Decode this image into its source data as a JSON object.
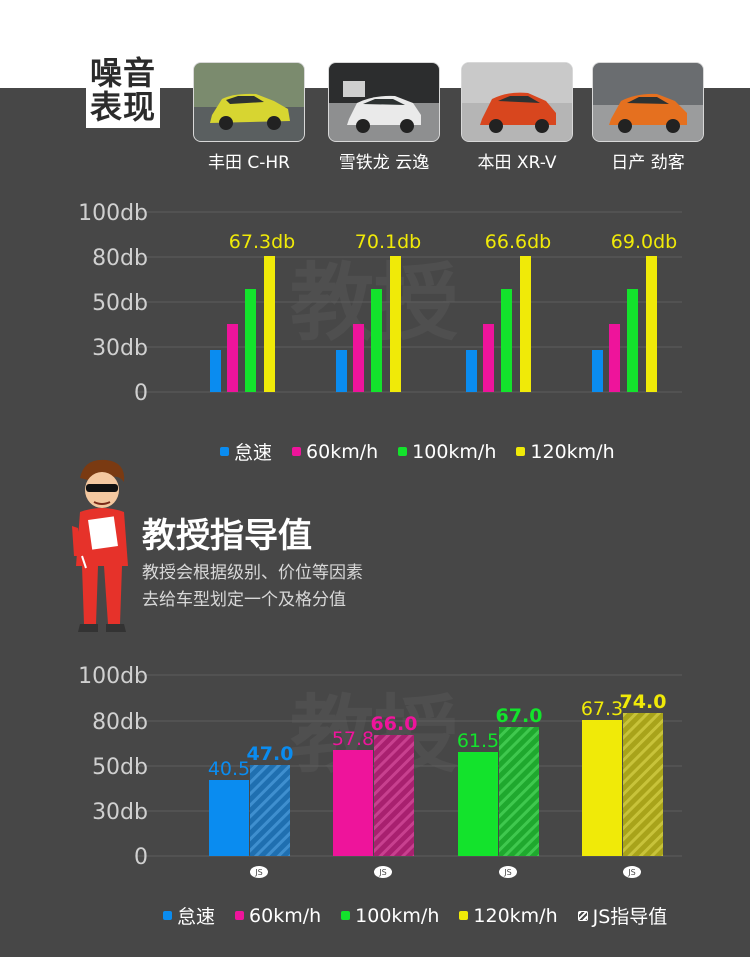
{
  "header": {
    "noise_title_line1": "噪音",
    "noise_title_line2": "表现"
  },
  "cars": [
    {
      "name": "丰田 C-HR",
      "color": "#d7d531"
    },
    {
      "name": "雪铁龙 云逸",
      "color": "#eaeaea"
    },
    {
      "name": "本田 XR-V",
      "color": "#d8461e"
    },
    {
      "name": "日产 劲客",
      "color": "#e5701f"
    }
  ],
  "watermark": "教授",
  "colors": {
    "idle": "#0a8cf0",
    "kmh60": "#ee149b",
    "kmh100": "#13e32c",
    "kmh120": "#f0ea08",
    "background": "#474747"
  },
  "legend_top": [
    {
      "label": "怠速",
      "color": "#0a8cf0"
    },
    {
      "label": "60km/h",
      "color": "#ee149b"
    },
    {
      "label": "100km/h",
      "color": "#13e32c"
    },
    {
      "label": "120km/h",
      "color": "#f0ea08"
    }
  ],
  "professor": {
    "title": "教授指导值",
    "desc_line1": "教授会根据级别、价位等因素",
    "desc_line2": "去给车型划定一个及格分值"
  },
  "legend_bottom": [
    {
      "label": "怠速",
      "color": "#0a8cf0",
      "hatch": false
    },
    {
      "label": "60km/h",
      "color": "#ee149b",
      "hatch": false
    },
    {
      "label": "100km/h",
      "color": "#13e32c",
      "hatch": false
    },
    {
      "label": "120km/h",
      "color": "#f0ea08",
      "hatch": false
    },
    {
      "label": "JS指导值",
      "color": "#ffffff",
      "hatch": true
    }
  ],
  "chart_data": [
    {
      "type": "bar",
      "title": "",
      "y_ticks": [
        "100db",
        "80db",
        "50db",
        "30db",
        "0"
      ],
      "categories": [
        "丰田 C-HR",
        "雪铁龙 云逸",
        "本田 XR-V",
        "日产 劲客"
      ],
      "series": [
        {
          "name": "怠速",
          "values": [
            null,
            null,
            null,
            null
          ]
        },
        {
          "name": "60km/h",
          "values": [
            null,
            null,
            null,
            null
          ]
        },
        {
          "name": "100km/h",
          "values": [
            null,
            null,
            null,
            null
          ]
        },
        {
          "name": "120km/h",
          "values": [
            67.3,
            70.1,
            66.6,
            69.0
          ]
        }
      ],
      "value_labels": [
        "67.3db",
        "70.1db",
        "66.6db",
        "69.0db"
      ],
      "grid": true,
      "legend": "bottom"
    },
    {
      "type": "bar",
      "title": "",
      "y_ticks": [
        "100db",
        "80db",
        "50db",
        "30db",
        "0"
      ],
      "categories": [
        "怠速",
        "60km/h",
        "100km/h",
        "120km/h"
      ],
      "series": [
        {
          "name": "怠速 / 60km/h / 100km/h / 120km/h",
          "values": [
            40.5,
            57.8,
            61.5,
            67.3
          ]
        },
        {
          "name": "JS指导值",
          "values": [
            47.0,
            66.0,
            67.0,
            74.0
          ]
        }
      ],
      "value_labels_measured": [
        "40.5",
        "57.8",
        "61.5",
        "67.3"
      ],
      "value_labels_guide": [
        "47.0",
        "66.0",
        "67.0",
        "74.0"
      ],
      "x_marker": "JS",
      "grid": true,
      "legend": "bottom"
    }
  ]
}
